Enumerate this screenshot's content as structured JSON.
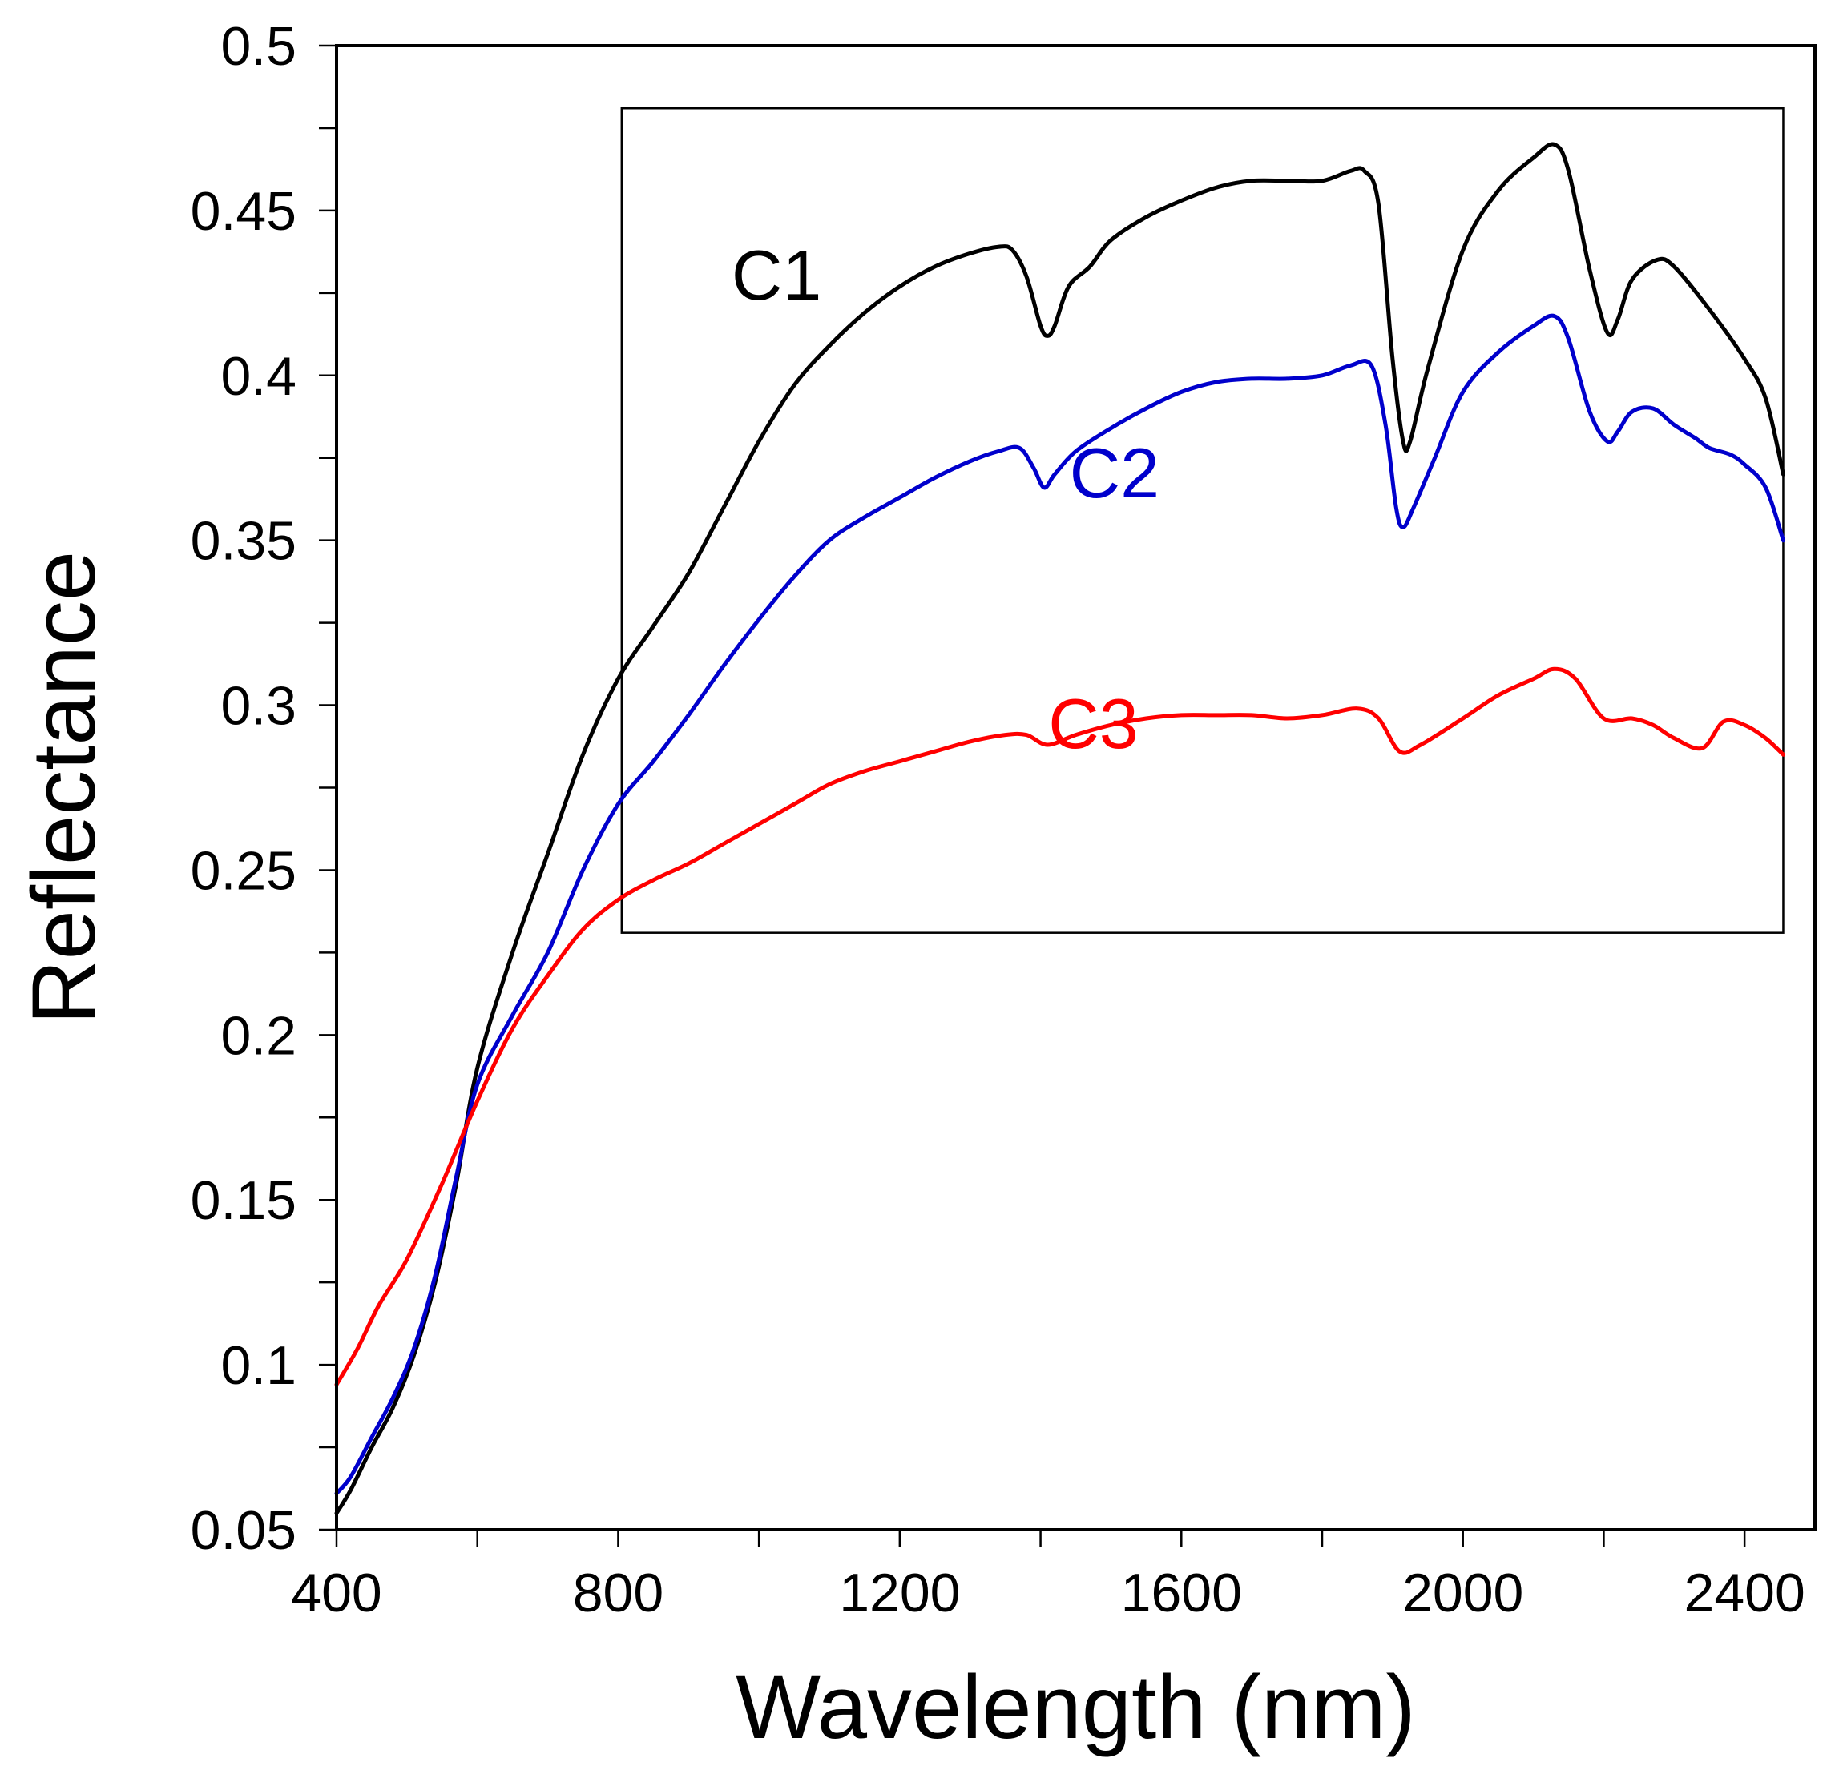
{
  "chart_data": {
    "type": "line",
    "title": "",
    "xlabel": "Wavelength (nm)",
    "ylabel": "Reflectance",
    "xlim": [
      400,
      2500
    ],
    "ylim": [
      0.05,
      0.5
    ],
    "x_ticks": [
      400,
      800,
      1200,
      1600,
      2000,
      2400
    ],
    "x_tick_labels": [
      "400",
      "800",
      "1200",
      "1600",
      "2000",
      "2400"
    ],
    "x_minor_ticks": [
      400,
      600,
      800,
      1000,
      1200,
      1400,
      1600,
      1800,
      2000,
      2200,
      2400
    ],
    "y_ticks": [
      0.05,
      0.1,
      0.15,
      0.2,
      0.25,
      0.3,
      0.35,
      0.4,
      0.45,
      0.5
    ],
    "y_tick_labels": [
      "0.05",
      "0.1",
      "0.15",
      "0.2",
      "0.25",
      "0.3",
      "0.35",
      "0.4",
      "0.45",
      "0.5"
    ],
    "y_minor_ticks": [
      0.05,
      0.075,
      0.1,
      0.125,
      0.15,
      0.175,
      0.2,
      0.225,
      0.25,
      0.275,
      0.3,
      0.325,
      0.35,
      0.375,
      0.4,
      0.425,
      0.45,
      0.475,
      0.5
    ],
    "grid": false,
    "legend": "inline labels",
    "inset_box": {
      "x_range": [
        805,
        2455
      ],
      "y_range": [
        0.231,
        0.481
      ]
    },
    "series": [
      {
        "name": "C1",
        "color": "#000000",
        "label_at": {
          "x": 1025,
          "y": 0.423
        },
        "points": [
          [
            400,
            0.055
          ],
          [
            420,
            0.062
          ],
          [
            450,
            0.075
          ],
          [
            480,
            0.087
          ],
          [
            510,
            0.103
          ],
          [
            540,
            0.125
          ],
          [
            570,
            0.155
          ],
          [
            600,
            0.19
          ],
          [
            650,
            0.225
          ],
          [
            700,
            0.255
          ],
          [
            750,
            0.285
          ],
          [
            800,
            0.308
          ],
          [
            850,
            0.324
          ],
          [
            900,
            0.34
          ],
          [
            950,
            0.36
          ],
          [
            1000,
            0.38
          ],
          [
            1050,
            0.397
          ],
          [
            1100,
            0.409
          ],
          [
            1150,
            0.419
          ],
          [
            1200,
            0.427
          ],
          [
            1250,
            0.433
          ],
          [
            1300,
            0.437
          ],
          [
            1340,
            0.439
          ],
          [
            1360,
            0.438
          ],
          [
            1380,
            0.43
          ],
          [
            1400,
            0.415
          ],
          [
            1410,
            0.412
          ],
          [
            1420,
            0.415
          ],
          [
            1440,
            0.427
          ],
          [
            1470,
            0.433
          ],
          [
            1500,
            0.441
          ],
          [
            1550,
            0.448
          ],
          [
            1600,
            0.453
          ],
          [
            1650,
            0.457
          ],
          [
            1700,
            0.459
          ],
          [
            1750,
            0.459
          ],
          [
            1800,
            0.459
          ],
          [
            1840,
            0.462
          ],
          [
            1860,
            0.462
          ],
          [
            1880,
            0.452
          ],
          [
            1900,
            0.405
          ],
          [
            1915,
            0.38
          ],
          [
            1925,
            0.38
          ],
          [
            1950,
            0.402
          ],
          [
            2000,
            0.438
          ],
          [
            2050,
            0.456
          ],
          [
            2100,
            0.466
          ],
          [
            2130,
            0.47
          ],
          [
            2150,
            0.462
          ],
          [
            2180,
            0.432
          ],
          [
            2205,
            0.413
          ],
          [
            2220,
            0.417
          ],
          [
            2240,
            0.429
          ],
          [
            2275,
            0.435
          ],
          [
            2300,
            0.433
          ],
          [
            2350,
            0.42
          ],
          [
            2400,
            0.405
          ],
          [
            2430,
            0.393
          ],
          [
            2455,
            0.37
          ]
        ]
      },
      {
        "name": "C2",
        "color": "#0000cc",
        "label_at": {
          "x": 1505,
          "y": 0.363
        },
        "points": [
          [
            400,
            0.061
          ],
          [
            420,
            0.066
          ],
          [
            450,
            0.078
          ],
          [
            480,
            0.09
          ],
          [
            510,
            0.105
          ],
          [
            540,
            0.127
          ],
          [
            570,
            0.157
          ],
          [
            600,
            0.185
          ],
          [
            650,
            0.206
          ],
          [
            700,
            0.225
          ],
          [
            750,
            0.25
          ],
          [
            800,
            0.27
          ],
          [
            850,
            0.283
          ],
          [
            900,
            0.297
          ],
          [
            950,
            0.312
          ],
          [
            1000,
            0.326
          ],
          [
            1050,
            0.339
          ],
          [
            1100,
            0.35
          ],
          [
            1150,
            0.357
          ],
          [
            1200,
            0.363
          ],
          [
            1250,
            0.369
          ],
          [
            1300,
            0.374
          ],
          [
            1340,
            0.377
          ],
          [
            1370,
            0.378
          ],
          [
            1390,
            0.372
          ],
          [
            1405,
            0.366
          ],
          [
            1420,
            0.37
          ],
          [
            1450,
            0.377
          ],
          [
            1500,
            0.384
          ],
          [
            1550,
            0.39
          ],
          [
            1600,
            0.395
          ],
          [
            1650,
            0.398
          ],
          [
            1700,
            0.399
          ],
          [
            1750,
            0.399
          ],
          [
            1800,
            0.4
          ],
          [
            1840,
            0.403
          ],
          [
            1870,
            0.403
          ],
          [
            1890,
            0.385
          ],
          [
            1905,
            0.36
          ],
          [
            1915,
            0.354
          ],
          [
            1930,
            0.36
          ],
          [
            1960,
            0.375
          ],
          [
            2000,
            0.395
          ],
          [
            2050,
            0.407
          ],
          [
            2100,
            0.415
          ],
          [
            2130,
            0.418
          ],
          [
            2150,
            0.411
          ],
          [
            2180,
            0.389
          ],
          [
            2205,
            0.38
          ],
          [
            2220,
            0.383
          ],
          [
            2240,
            0.389
          ],
          [
            2270,
            0.39
          ],
          [
            2300,
            0.385
          ],
          [
            2330,
            0.381
          ],
          [
            2350,
            0.378
          ],
          [
            2380,
            0.376
          ],
          [
            2400,
            0.373
          ],
          [
            2430,
            0.366
          ],
          [
            2455,
            0.35
          ]
        ]
      },
      {
        "name": "C3",
        "color": "#ff0000",
        "label_at": {
          "x": 1475,
          "y": 0.287
        },
        "points": [
          [
            400,
            0.094
          ],
          [
            430,
            0.105
          ],
          [
            460,
            0.118
          ],
          [
            500,
            0.132
          ],
          [
            550,
            0.155
          ],
          [
            600,
            0.18
          ],
          [
            650,
            0.202
          ],
          [
            700,
            0.218
          ],
          [
            750,
            0.232
          ],
          [
            800,
            0.241
          ],
          [
            850,
            0.247
          ],
          [
            900,
            0.252
          ],
          [
            950,
            0.258
          ],
          [
            1000,
            0.264
          ],
          [
            1050,
            0.27
          ],
          [
            1100,
            0.276
          ],
          [
            1150,
            0.28
          ],
          [
            1200,
            0.283
          ],
          [
            1250,
            0.286
          ],
          [
            1300,
            0.289
          ],
          [
            1350,
            0.291
          ],
          [
            1380,
            0.291
          ],
          [
            1410,
            0.288
          ],
          [
            1450,
            0.291
          ],
          [
            1500,
            0.294
          ],
          [
            1550,
            0.296
          ],
          [
            1600,
            0.297
          ],
          [
            1650,
            0.297
          ],
          [
            1700,
            0.297
          ],
          [
            1750,
            0.296
          ],
          [
            1800,
            0.297
          ],
          [
            1850,
            0.299
          ],
          [
            1880,
            0.296
          ],
          [
            1910,
            0.286
          ],
          [
            1940,
            0.288
          ],
          [
            2000,
            0.296
          ],
          [
            2050,
            0.303
          ],
          [
            2100,
            0.308
          ],
          [
            2130,
            0.311
          ],
          [
            2160,
            0.308
          ],
          [
            2200,
            0.296
          ],
          [
            2240,
            0.296
          ],
          [
            2270,
            0.294
          ],
          [
            2300,
            0.29
          ],
          [
            2340,
            0.287
          ],
          [
            2370,
            0.295
          ],
          [
            2400,
            0.294
          ],
          [
            2430,
            0.29
          ],
          [
            2455,
            0.285
          ]
        ]
      }
    ]
  }
}
